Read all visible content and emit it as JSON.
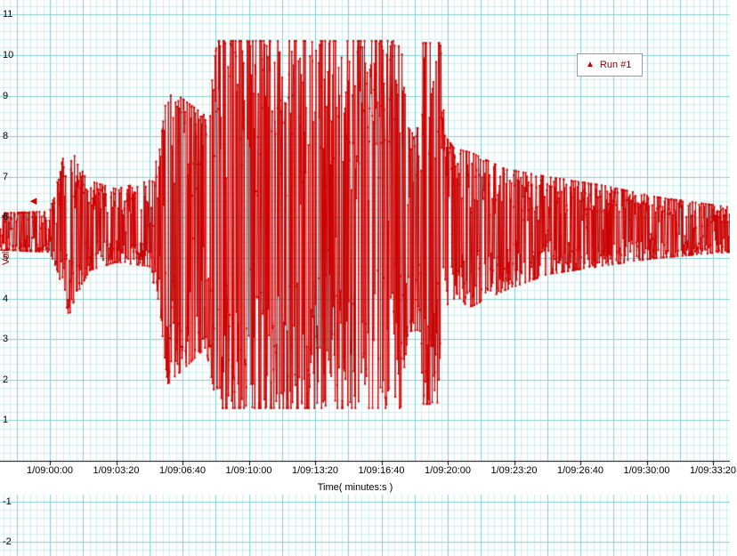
{
  "chart_data": {
    "type": "line",
    "title": "",
    "xlabel": "Time( minutes:s )",
    "ylabel": "Volt",
    "ylim": [
      -2,
      11
    ],
    "grid_on": true,
    "series": [
      {
        "name": "Run #1",
        "color": "#cc0000",
        "marker": "dot",
        "style": "line-with-dots"
      }
    ],
    "legend": {
      "label": "Run #1",
      "marker": "triangle-up",
      "color": "#cc0000",
      "position": "top-right"
    },
    "y_ticks": [
      11,
      10,
      9,
      8,
      7,
      6,
      5,
      4,
      3,
      2,
      1,
      -1,
      -2
    ],
    "x_ticks": [
      {
        "t": 0,
        "label": "1/09:00:00"
      },
      {
        "t": 200,
        "label": "1/09:03:20"
      },
      {
        "t": 400,
        "label": "1/09:06:40"
      },
      {
        "t": 600,
        "label": "1/09:10:00"
      },
      {
        "t": 800,
        "label": "1/09:13:20"
      },
      {
        "t": 1000,
        "label": "1/09:16:40"
      },
      {
        "t": 1200,
        "label": "1/09:20:00"
      },
      {
        "t": 1400,
        "label": "1/09:23:20"
      },
      {
        "t": 1600,
        "label": "1/09:26:40"
      },
      {
        "t": 1800,
        "label": "1/09:30:00"
      },
      {
        "t": 2000,
        "label": "1/09:33:20"
      }
    ],
    "t_range": [
      -150,
      2050
    ],
    "baseline": 5.65,
    "clip_high": 10.35,
    "clip_low": 1.3,
    "envelope": [
      [
        -150,
        5.2,
        6.1
      ],
      [
        0,
        5.15,
        6.15
      ],
      [
        27,
        4.6,
        7.0
      ],
      [
        55,
        3.5,
        8.0
      ],
      [
        75,
        4.0,
        7.5
      ],
      [
        120,
        4.7,
        6.9
      ],
      [
        200,
        4.9,
        6.7
      ],
      [
        300,
        4.8,
        6.9
      ],
      [
        330,
        3.8,
        7.6
      ],
      [
        355,
        1.9,
        9.2
      ],
      [
        420,
        2.4,
        8.8
      ],
      [
        470,
        2.8,
        8.5
      ],
      [
        505,
        1.3,
        10.35
      ],
      [
        1060,
        1.3,
        10.35
      ],
      [
        1080,
        3.2,
        8.2
      ],
      [
        1118,
        3.2,
        8.2
      ],
      [
        1125,
        1.4,
        10.3
      ],
      [
        1178,
        1.4,
        10.3
      ],
      [
        1192,
        3.8,
        8.0
      ],
      [
        1220,
        4.0,
        7.7
      ],
      [
        1270,
        3.8,
        7.6
      ],
      [
        1370,
        4.2,
        7.2
      ],
      [
        1500,
        4.6,
        7.0
      ],
      [
        1660,
        4.8,
        6.8
      ],
      [
        1830,
        5.0,
        6.5
      ],
      [
        2050,
        5.15,
        6.25
      ]
    ],
    "sample_step_s": 1.2,
    "noise_seed": 9157,
    "pointer": {
      "value": 6.4,
      "symbol": "left-triangle",
      "color": "#cc0000"
    },
    "grid": {
      "minor": "#cdeef0",
      "major": "#7fd0d8"
    },
    "axis_color": "#000000",
    "text_color": "#000000",
    "background": "#ffffff"
  },
  "glyphs": {
    "legend_triangle": "▲",
    "pointer_triangle": "◄"
  }
}
